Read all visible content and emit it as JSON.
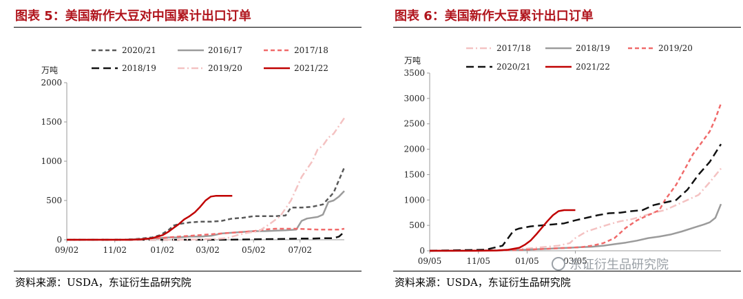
{
  "panels": [
    {
      "title": "图表 5：美国新作大豆对中国累计出口订单",
      "source": "资料来源：USDA，东证衍生品研究院"
    },
    {
      "title": "图表 6：美国新作大豆累计出口订单",
      "source": "资料来源：USDA，东证衍生品研究院"
    }
  ],
  "watermark": "东证衍生品研究院",
  "chart_data": [
    {
      "type": "line",
      "title": "图表 5：美国新作大豆对中国累计出口订单",
      "ylabel": "万吨",
      "ylim": [
        0,
        2000
      ],
      "yticks": [
        0,
        500,
        1000,
        1500,
        2000
      ],
      "xlim": [
        0,
        52
      ],
      "xticks": [
        {
          "pos": 0,
          "label": "09/02"
        },
        {
          "pos": 9,
          "label": "11/02"
        },
        {
          "pos": 17.9,
          "label": "01/02"
        },
        {
          "pos": 26.4,
          "label": "03/02"
        },
        {
          "pos": 35,
          "label": "05/02"
        },
        {
          "pos": 43.7,
          "label": "07/02"
        }
      ],
      "legend_position": "top",
      "series": [
        {
          "name": "2020/21",
          "color": "#595959",
          "style": "dash",
          "x": [
            0,
            10,
            13,
            16,
            17.5,
            19,
            20,
            21,
            23,
            25,
            27,
            29,
            31,
            33,
            35,
            37,
            39,
            41,
            42,
            44,
            46,
            48,
            50,
            52
          ],
          "y": [
            0,
            0,
            10,
            30,
            60,
            120,
            180,
            200,
            220,
            230,
            230,
            240,
            270,
            280,
            300,
            300,
            300,
            310,
            410,
            410,
            420,
            450,
            600,
            920
          ]
        },
        {
          "name": "2016/17",
          "color": "#9b9b9b",
          "style": "solid",
          "x": [
            0,
            10,
            14,
            17,
            19,
            21,
            23,
            25,
            27,
            29,
            31,
            33,
            35,
            37,
            39,
            41,
            43,
            44,
            45,
            47,
            48,
            49,
            50,
            51,
            52
          ],
          "y": [
            0,
            0,
            10,
            20,
            30,
            30,
            40,
            40,
            50,
            80,
            90,
            100,
            110,
            110,
            115,
            120,
            130,
            240,
            270,
            290,
            320,
            480,
            500,
            550,
            620
          ]
        },
        {
          "name": "2017/18",
          "color": "#f06a6a",
          "style": "dash",
          "x": [
            0,
            10,
            14,
            17,
            19,
            21,
            23,
            25,
            27,
            29,
            31,
            33,
            35,
            37,
            39,
            41,
            43,
            45,
            47,
            49,
            51,
            52
          ],
          "y": [
            0,
            0,
            5,
            20,
            30,
            40,
            50,
            60,
            70,
            80,
            90,
            100,
            110,
            130,
            140,
            140,
            140,
            135,
            130,
            130,
            130,
            140
          ]
        },
        {
          "name": "2018/19",
          "color": "#111111",
          "style": "longdash",
          "x": [
            0,
            10,
            20,
            30,
            35,
            40,
            44,
            46,
            48,
            50,
            51,
            52
          ],
          "y": [
            0,
            0,
            0,
            0,
            5,
            10,
            15,
            15,
            20,
            20,
            40,
            100
          ]
        },
        {
          "name": "2019/20",
          "color": "#f4c2c2",
          "style": "dashdot",
          "x": [
            0,
            10,
            20,
            25,
            28,
            30,
            32,
            34,
            36,
            38,
            40,
            41,
            42,
            43,
            44,
            45,
            46,
            47,
            48,
            49,
            50,
            51,
            52
          ],
          "y": [
            0,
            0,
            0,
            5,
            10,
            20,
            60,
            90,
            110,
            200,
            300,
            400,
            500,
            650,
            800,
            900,
            1000,
            1150,
            1200,
            1300,
            1350,
            1450,
            1550
          ]
        },
        {
          "name": "2021/22",
          "color": "#c00000",
          "style": "solid",
          "x": [
            0,
            8,
            12,
            14,
            16,
            17,
            18,
            19,
            20,
            21,
            22,
            23,
            24,
            25,
            26,
            27,
            28,
            29,
            30,
            31
          ],
          "y": [
            0,
            0,
            0,
            5,
            20,
            40,
            60,
            100,
            150,
            200,
            260,
            300,
            350,
            420,
            500,
            550,
            560,
            560,
            560,
            560
          ]
        }
      ]
    },
    {
      "type": "line",
      "title": "图表 6：美国新作大豆累计出口订单",
      "ylabel": "万吨",
      "ylim": [
        0,
        3500
      ],
      "yticks": [
        0,
        500,
        1000,
        1500,
        2000,
        2500,
        3000,
        3500
      ],
      "xlim": [
        0,
        52
      ],
      "xticks": [
        {
          "pos": 0,
          "label": "09/05"
        },
        {
          "pos": 8.7,
          "label": "11/05"
        },
        {
          "pos": 17.4,
          "label": "01/05"
        },
        {
          "pos": 26,
          "label": "03/05"
        }
      ],
      "legend_position": "top",
      "series": [
        {
          "name": "2017/18",
          "color": "#f4c2c2",
          "style": "dashdot",
          "x": [
            0,
            10,
            14,
            17,
            19,
            21,
            23,
            25,
            26,
            28,
            30,
            32,
            34,
            36,
            38,
            40,
            42,
            44,
            46,
            48,
            50,
            52
          ],
          "y": [
            0,
            10,
            20,
            40,
            60,
            80,
            100,
            150,
            250,
            380,
            450,
            520,
            580,
            620,
            680,
            750,
            800,
            900,
            1000,
            1100,
            1350,
            1620
          ]
        },
        {
          "name": "2018/19",
          "color": "#9b9b9b",
          "style": "solid",
          "x": [
            0,
            10,
            14,
            17,
            19,
            21,
            23,
            25,
            27,
            29,
            31,
            33,
            35,
            37,
            39,
            41,
            43,
            45,
            47,
            49,
            50,
            51,
            52
          ],
          "y": [
            0,
            5,
            10,
            20,
            30,
            40,
            50,
            60,
            70,
            80,
            100,
            130,
            160,
            200,
            250,
            280,
            320,
            380,
            450,
            520,
            560,
            650,
            920
          ]
        },
        {
          "name": "2019/20",
          "color": "#f06a6a",
          "style": "dash",
          "x": [
            0,
            10,
            14,
            17,
            19,
            21,
            23,
            25,
            27,
            29,
            31,
            33,
            35,
            37,
            39,
            41,
            42,
            44,
            45,
            46,
            47,
            48,
            49,
            50,
            51,
            52
          ],
          "y": [
            0,
            5,
            10,
            20,
            30,
            40,
            50,
            60,
            70,
            100,
            150,
            250,
            450,
            600,
            700,
            800,
            1000,
            1300,
            1500,
            1700,
            1900,
            2050,
            2200,
            2350,
            2600,
            2900
          ]
        },
        {
          "name": "2020/21",
          "color": "#111111",
          "style": "longdash",
          "x": [
            0,
            10,
            13,
            14,
            15,
            16,
            17,
            18,
            20,
            22,
            24,
            26,
            28,
            30,
            32,
            34,
            36,
            38,
            40,
            42,
            44,
            46,
            48,
            50,
            52
          ],
          "y": [
            0,
            20,
            100,
            250,
            400,
            440,
            460,
            480,
            500,
            520,
            540,
            600,
            650,
            700,
            740,
            750,
            780,
            800,
            900,
            950,
            1000,
            1200,
            1500,
            1750,
            2100
          ]
        },
        {
          "name": "2021/22",
          "color": "#c00000",
          "style": "solid",
          "x": [
            0,
            8,
            12,
            14,
            16,
            17,
            18,
            19,
            20,
            21,
            22,
            23,
            24,
            25,
            26
          ],
          "y": [
            0,
            0,
            5,
            20,
            60,
            120,
            200,
            320,
            450,
            580,
            700,
            780,
            800,
            800,
            800
          ]
        }
      ]
    }
  ]
}
